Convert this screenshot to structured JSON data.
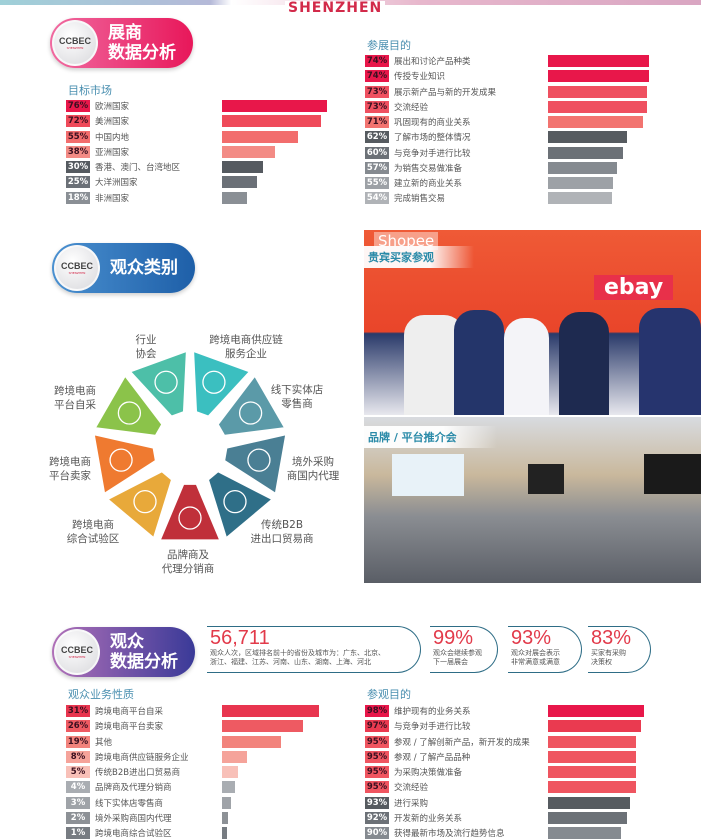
{
  "header": {
    "word": "SHENZHEN"
  },
  "exhibitor_badge": {
    "logo": "CCBEC",
    "logo_sub": "SHENZHEN",
    "title_1": "展商",
    "title_2": "数据分析",
    "color": "#e8326a"
  },
  "target_market": {
    "title": "目标市场",
    "items": [
      {
        "pct": "76%",
        "value": 76,
        "label": "欧洲国家",
        "color": "#e8174a",
        "text": "#3a1020"
      },
      {
        "pct": "72%",
        "value": 72,
        "label": "美洲国家",
        "color": "#ef4a5a",
        "text": "#3a1020"
      },
      {
        "pct": "55%",
        "value": 55,
        "label": "中国内地",
        "color": "#f26d6d",
        "text": "#3a1020"
      },
      {
        "pct": "38%",
        "value": 38,
        "label": "亚洲国家",
        "color": "#f38b85",
        "text": "#3a1020"
      },
      {
        "pct": "30%",
        "value": 30,
        "label": "香港、澳门、台湾地区",
        "color": "#555a60",
        "text": "#fff"
      },
      {
        "pct": "25%",
        "value": 25,
        "label": "大洋洲国家",
        "color": "#6b7077",
        "text": "#fff"
      },
      {
        "pct": "18%",
        "value": 18,
        "label": "非洲国家",
        "color": "#8a8f95",
        "text": "#fff"
      }
    ]
  },
  "exhibit_purpose": {
    "title": "参展目的",
    "items": [
      {
        "pct": "74%",
        "value": 74,
        "label": "展出和讨论产品种类",
        "color": "#e8174a",
        "text": "#3a1020"
      },
      {
        "pct": "74%",
        "value": 74,
        "label": "传授专业知识",
        "color": "#e8174a",
        "text": "#3a1020"
      },
      {
        "pct": "73%",
        "value": 73,
        "label": "展示新产品与新的开发成果",
        "color": "#ef5060",
        "text": "#3a1020"
      },
      {
        "pct": "73%",
        "value": 73,
        "label": "交流经验",
        "color": "#ef5060",
        "text": "#3a1020"
      },
      {
        "pct": "71%",
        "value": 71,
        "label": "巩固现有的商业关系",
        "color": "#f27470",
        "text": "#3a1020"
      },
      {
        "pct": "62%",
        "value": 62,
        "label": "了解市场的整体情况",
        "color": "#565b60",
        "text": "#fff"
      },
      {
        "pct": "60%",
        "value": 60,
        "label": "与竞争对手进行比较",
        "color": "#6c7177",
        "text": "#fff"
      },
      {
        "pct": "57%",
        "value": 57,
        "label": "为销售交易做准备",
        "color": "#858a90",
        "text": "#fff"
      },
      {
        "pct": "55%",
        "value": 55,
        "label": "建立新的商业关系",
        "color": "#9da1a6",
        "text": "#fff"
      },
      {
        "pct": "54%",
        "value": 54,
        "label": "完成销售交易",
        "color": "#b0b3b7",
        "text": "#fff"
      }
    ]
  },
  "visitor_type_badge": {
    "logo": "CCBEC",
    "logo_sub": "SHENZHEN",
    "title": "观众类别",
    "color": "#2a72b8"
  },
  "visitor_wheel": [
    {
      "label": "品牌商及\n代理分销商",
      "color": "#c0303a",
      "icon": "target-people-icon"
    },
    {
      "label": "跨境电商\n综合试验区",
      "color": "#e8a93a",
      "icon": "gear-document-icon"
    },
    {
      "label": "跨境电商\n平台卖家",
      "color": "#ef7a30",
      "icon": "globe-monitor-icon"
    },
    {
      "label": "跨境电商\n平台自采",
      "color": "#8bc34a",
      "icon": "touch-screen-icon"
    },
    {
      "label": "行业\n协会",
      "color": "#4dbfa8",
      "icon": "people-network-icon"
    },
    {
      "label": "跨境电商供应链\n服务企业",
      "color": "#3bbfc0",
      "icon": "handshake-globe-icon"
    },
    {
      "label": "线下实体店\n零售商",
      "color": "#5b9aa8",
      "icon": "storefront-icon"
    },
    {
      "label": "境外采购\n商国内代理",
      "color": "#4a7f94",
      "icon": "agent-boxes-icon"
    },
    {
      "label": "传统B2B\n进出口贸易商",
      "color": "#2f6f88",
      "icon": "exchange-people-icon"
    }
  ],
  "photos": [
    {
      "caption": "贵宾买家参观",
      "signs": [
        "Shopee",
        "ebay"
      ]
    },
    {
      "caption": "品牌 / 平台推介会"
    }
  ],
  "visitor_badge": {
    "logo": "CCBEC",
    "logo_sub": "SHENZHEN",
    "title_1": "观众",
    "title_2": "数据分析",
    "color": "#7a4aa8"
  },
  "stats": [
    {
      "number": "56,711",
      "desc": "观众人次，区域排名前十的省份及城市为：广东、北京、\n浙江、福建、江苏、河南、山东、湖南、上海、河北"
    },
    {
      "number": "99%",
      "desc": "观众会继续参观\n下一届展会"
    },
    {
      "number": "93%",
      "desc": "观众对展会表示\n非常满意或满意"
    },
    {
      "number": "83%",
      "desc": "买家有采购\n决策权"
    }
  ],
  "business_nature": {
    "title": "观众业务性质",
    "items": [
      {
        "pct": "31%",
        "value": 31,
        "label": "跨境电商平台自采",
        "color": "#e8354f",
        "text": "#3a1020"
      },
      {
        "pct": "26%",
        "value": 26,
        "label": "跨境电商平台卖家",
        "color": "#ee5a62",
        "text": "#3a1020"
      },
      {
        "pct": "19%",
        "value": 19,
        "label": "其他",
        "color": "#f2837c",
        "text": "#3a1020"
      },
      {
        "pct": "8%",
        "value": 8,
        "label": "跨境电商供应链服务企业",
        "color": "#f5a39a",
        "text": "#3a1020"
      },
      {
        "pct": "5%",
        "value": 5,
        "label": "传统B2B进出口贸易商",
        "color": "#f8c0b8",
        "text": "#3a1020"
      },
      {
        "pct": "4%",
        "value": 4,
        "label": "品牌商及代理分销商",
        "color": "#a9adb2",
        "text": "#fff"
      },
      {
        "pct": "3%",
        "value": 3,
        "label": "线下实体店零售商",
        "color": "#9fa3a8",
        "text": "#fff"
      },
      {
        "pct": "2%",
        "value": 2,
        "label": "境外采购商国内代理",
        "color": "#8d9196",
        "text": "#fff"
      },
      {
        "pct": "1%",
        "value": 1,
        "label": "跨境电商综合试验区",
        "color": "#777c82",
        "text": "#fff"
      }
    ]
  },
  "visit_purpose": {
    "title": "参观目的",
    "items": [
      {
        "pct": "98%",
        "value": 98,
        "label": "维护现有的业务关系",
        "color": "#e8174a",
        "text": "#3a1020"
      },
      {
        "pct": "97%",
        "value": 97,
        "label": "与竞争对手进行比较",
        "color": "#ea3a50",
        "text": "#3a1020"
      },
      {
        "pct": "95%",
        "value": 95,
        "label": "参观 / 了解创新产品，新开发的成果",
        "color": "#ef5560",
        "text": "#3a1020"
      },
      {
        "pct": "95%",
        "value": 95,
        "label": "参观 / 了解产品品种",
        "color": "#ef5560",
        "text": "#3a1020"
      },
      {
        "pct": "95%",
        "value": 95,
        "label": "为采购决策做准备",
        "color": "#ef5560",
        "text": "#3a1020"
      },
      {
        "pct": "95%",
        "value": 95,
        "label": "交流经验",
        "color": "#ef5560",
        "text": "#3a1020"
      },
      {
        "pct": "93%",
        "value": 93,
        "label": "进行采购",
        "color": "#565b60",
        "text": "#fff"
      },
      {
        "pct": "92%",
        "value": 92,
        "label": "开发新的业务关系",
        "color": "#6c7177",
        "text": "#fff"
      },
      {
        "pct": "90%",
        "value": 90,
        "label": "获得最新市场及流行趋势信息",
        "color": "#858a90",
        "text": "#fff"
      }
    ]
  }
}
